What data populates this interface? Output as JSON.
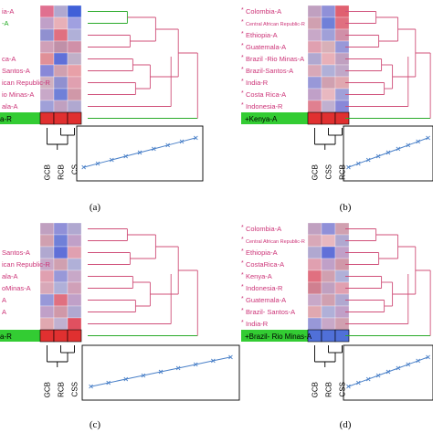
{
  "colors": {
    "label_pink": "#cc3377",
    "label_green": "#22aa22",
    "highlight_green": "#33cc33",
    "dendro_pink": "#d0507a",
    "dendro_green": "#2aaa2a",
    "line_blue": "#4a80c8",
    "bar_red": "#e03030"
  },
  "panels": [
    {
      "caption": "(a)",
      "samples": [
        {
          "label": "ia-A",
          "marked": false,
          "color": "pink"
        },
        {
          "label": "-A",
          "marked": false,
          "color": "green"
        },
        {
          "label": "",
          "marked": false,
          "color": "pink"
        },
        {
          "label": "",
          "marked": false,
          "color": "pink"
        },
        {
          "label": "ca-A",
          "marked": false,
          "color": "pink"
        },
        {
          "label": "Santos-A",
          "marked": false,
          "color": "pink"
        },
        {
          "label": "ican Republic-R",
          "marked": false,
          "color": "pink"
        },
        {
          "label": "io Minas-A",
          "marked": false,
          "color": "pink"
        },
        {
          "label": "ala-A",
          "marked": false,
          "color": "pink"
        }
      ],
      "highlight_label": "a-R",
      "columns": [
        "GCB",
        "RCB",
        "CS"
      ],
      "heat": [
        [
          "#e07090",
          "#b0a8d0",
          "#4060d8"
        ],
        [
          "#c0a0c8",
          "#e8b0b8",
          "#a0a0e0"
        ],
        [
          "#9090d0",
          "#e07080",
          "#b0b0d8"
        ],
        [
          "#d0a0b8",
          "#c090a8",
          "#d090a8"
        ],
        [
          "#e09098",
          "#6070d8",
          "#c0b0c8"
        ],
        [
          "#8888d8",
          "#d0a0b0",
          "#e8a0a8"
        ],
        [
          "#d0b0c0",
          "#9090d0",
          "#e0a0b0"
        ],
        [
          "#c8a8c8",
          "#7080d8",
          "#d098a8"
        ],
        [
          "#a0a0d8",
          "#c0a0c0",
          "#b0a8d0"
        ]
      ]
    },
    {
      "caption": "(b)",
      "samples": [
        {
          "label": "Colombia-A",
          "marked": true,
          "color": "pink"
        },
        {
          "label": "Central African Republic-R",
          "marked": true,
          "color": "pink"
        },
        {
          "label": "Ethiopia-A",
          "marked": true,
          "color": "pink"
        },
        {
          "label": "Guatemala-A",
          "marked": true,
          "color": "pink"
        },
        {
          "label": "Brazil -Rio Minas-A",
          "marked": true,
          "color": "pink"
        },
        {
          "label": "Brazil-Santos-A",
          "marked": true,
          "color": "pink"
        },
        {
          "label": "India-R",
          "marked": true,
          "color": "pink"
        },
        {
          "label": "Costa Rica-A",
          "marked": true,
          "color": "pink"
        },
        {
          "label": "Indonesia-R",
          "marked": true,
          "color": "pink"
        }
      ],
      "highlight_label": "Kenya-A",
      "columns": [
        "GCB",
        "CSS",
        "RCB"
      ],
      "heat": [
        [
          "#c0a0c0",
          "#9090d8",
          "#e06070"
        ],
        [
          "#d0a0b0",
          "#7080d8",
          "#e07080"
        ],
        [
          "#c8a8c8",
          "#a0a0d8",
          "#d090a8"
        ],
        [
          "#e0a0b0",
          "#d8b0b8",
          "#9898d8"
        ],
        [
          "#b0a8d0",
          "#e8b0b8",
          "#c0a0c0"
        ],
        [
          "#d8a8b8",
          "#b0b0d8",
          "#c0a8c8"
        ],
        [
          "#9898d8",
          "#d0a0b0",
          "#e0a8b0"
        ],
        [
          "#c0a0c8",
          "#e8b8c0",
          "#a0a0d8"
        ],
        [
          "#e08090",
          "#c0b0d0",
          "#8888d8"
        ]
      ]
    },
    {
      "caption": "(c)",
      "samples": [
        {
          "label": "",
          "marked": false,
          "color": "pink"
        },
        {
          "label": "",
          "marked": false,
          "color": "pink"
        },
        {
          "label": "Santos-A",
          "marked": false,
          "color": "pink"
        },
        {
          "label": "ican Republic-R",
          "marked": false,
          "color": "pink"
        },
        {
          "label": "ala-A",
          "marked": false,
          "color": "pink"
        },
        {
          "label": "oMinas-A",
          "marked": false,
          "color": "pink"
        },
        {
          "label": "A",
          "marked": false,
          "color": "pink"
        },
        {
          "label": "A",
          "marked": false,
          "color": "pink"
        },
        {
          "label": "",
          "marked": false,
          "color": "pink"
        }
      ],
      "highlight_label": "a-R",
      "columns": [
        "GCB",
        "RCB",
        "CSS"
      ],
      "heat": [
        [
          "#c0a0c0",
          "#9090d8",
          "#b0a8d0"
        ],
        [
          "#d0a0b0",
          "#7080d8",
          "#c0a0c8"
        ],
        [
          "#b0a8d0",
          "#6070d8",
          "#e0a0b0"
        ],
        [
          "#c8a8c8",
          "#d0a0b0",
          "#b0b0d8"
        ],
        [
          "#e0a0b0",
          "#9898d8",
          "#c8a8c8"
        ],
        [
          "#d8a8b8",
          "#b0b0d8",
          "#d0a0b8"
        ],
        [
          "#9898d8",
          "#e07080",
          "#c0a0c8"
        ],
        [
          "#c0a0c8",
          "#d098a8",
          "#b0a8d0"
        ],
        [
          "#e0a8b0",
          "#c0b0d0",
          "#e05060"
        ]
      ]
    },
    {
      "caption": "(d)",
      "samples": [
        {
          "label": "Colombia-A",
          "marked": true,
          "color": "pink"
        },
        {
          "label": "Central African Republic-R",
          "marked": true,
          "color": "pink"
        },
        {
          "label": "Ethiopia-A",
          "marked": true,
          "color": "pink"
        },
        {
          "label": "CostaRica-A",
          "marked": true,
          "color": "pink"
        },
        {
          "label": "Kenya-A",
          "marked": true,
          "color": "pink"
        },
        {
          "label": "Indonesia-R",
          "marked": true,
          "color": "pink"
        },
        {
          "label": "Guatemala-A",
          "marked": true,
          "color": "pink"
        },
        {
          "label": "Brazil- Santos-A",
          "marked": true,
          "color": "pink"
        },
        {
          "label": "India-R",
          "marked": true,
          "color": "pink"
        }
      ],
      "highlight_label": "Brazil- Rio Minas-A",
      "columns": [
        "GCB",
        "RCB",
        "CSS"
      ],
      "heat": [
        [
          "#c0a0c0",
          "#9090d8",
          "#d0a0b0"
        ],
        [
          "#d8a8b8",
          "#e8b8c0",
          "#b0a8d0"
        ],
        [
          "#b0a8d0",
          "#6070d8",
          "#c0a0c8"
        ],
        [
          "#e0a0b0",
          "#c0a0c8",
          "#d098a8"
        ],
        [
          "#e07080",
          "#d0a0b0",
          "#b0b0d8"
        ],
        [
          "#d08090",
          "#c0a0c0",
          "#e0a0b0"
        ],
        [
          "#c8a8c8",
          "#d0a0b0",
          "#b0a8d0"
        ],
        [
          "#e0a8b0",
          "#b0b0d8",
          "#c0a0c8"
        ],
        [
          "#9898d8",
          "#c8a8c8",
          "#d0a0b0"
        ]
      ]
    }
  ]
}
